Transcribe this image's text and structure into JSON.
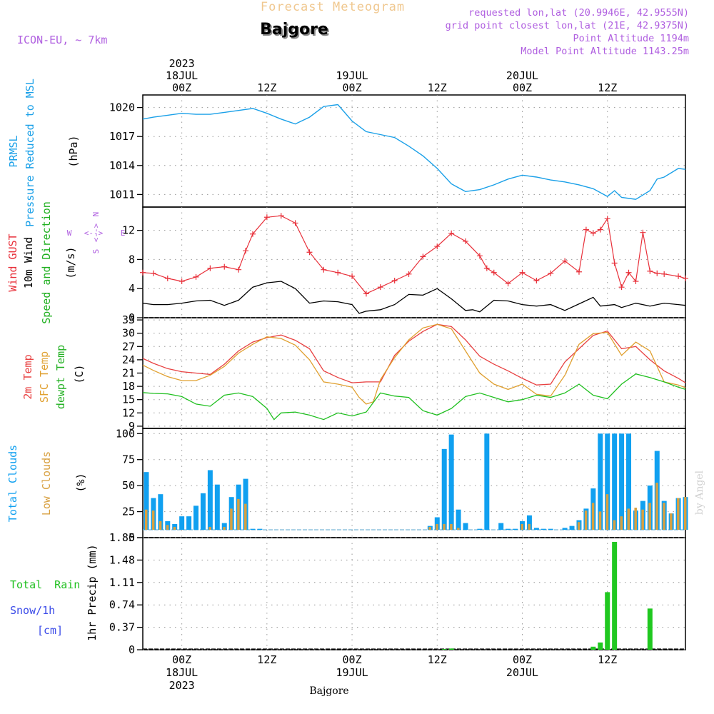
{
  "header": {
    "product": "Forecast Meteogram",
    "location": "Bajgore",
    "model": "ICON-EU, ~ 7km",
    "info_lines": [
      "requested lon,lat (20.9946E, 42.9555N)",
      "grid point closest lon,lat (21E, 42.9375N)",
      "Point Altitude 1194m",
      "Model Point Altitude 1143.25m"
    ],
    "watermark": "by Angel",
    "footer_location": "Bajgore"
  },
  "colors": {
    "pressure": "#1aa0e8",
    "gust": "#e8303a",
    "wind": "#000000",
    "temp": "#e84040",
    "sfc_temp": "#e0a030",
    "dewpoint": "#20c020",
    "total_clouds": "#10a0f0",
    "low_clouds": "#d8a040",
    "rain": "#20c820",
    "snow": "#3a4ae8",
    "label_green": "#20b020",
    "compass": "#b060e0",
    "model": "#b060e0"
  },
  "time_axis": {
    "top_labels": [
      {
        "t": 0,
        "lines": [
          "2023",
          "18JUL",
          "00Z"
        ]
      },
      {
        "t": 12,
        "lines": [
          "12Z"
        ]
      },
      {
        "t": 24,
        "lines": [
          "19JUL",
          "00Z"
        ]
      },
      {
        "t": 36,
        "lines": [
          "12Z"
        ]
      },
      {
        "t": 48,
        "lines": [
          "20JUL",
          "00Z"
        ]
      },
      {
        "t": 60,
        "lines": [
          "12Z"
        ]
      }
    ],
    "bottom_labels": [
      {
        "t": 0,
        "lines": [
          "00Z",
          "18JUL",
          "2023"
        ]
      },
      {
        "t": 12,
        "lines": [
          "12Z"
        ]
      },
      {
        "t": 24,
        "lines": [
          "00Z",
          "19JUL"
        ]
      },
      {
        "t": 36,
        "lines": [
          "12Z"
        ]
      },
      {
        "t": 48,
        "lines": [
          "00Z",
          "20JUL"
        ]
      },
      {
        "t": 60,
        "lines": [
          "12Z"
        ]
      }
    ],
    "t_start": -5.5,
    "t_end": 71
  },
  "chart_data": [
    {
      "type": "line",
      "id": "pressure",
      "title": "PRMSL Pressure Reduced to MSL",
      "ylabel": "(hPa)",
      "labels": [
        "PRMSL",
        "Pressure Reduced to MSL"
      ],
      "ylim": [
        1009.7,
        1021.3
      ],
      "yticks": [
        1011,
        1014,
        1017,
        1020
      ],
      "series": [
        {
          "name": "Pressure Reduced to MSL",
          "x": [
            -5.5,
            -4,
            -2,
            0,
            2,
            4,
            6,
            8,
            10,
            12,
            14,
            16,
            18,
            20,
            22,
            24,
            26,
            28,
            30,
            32,
            34,
            36,
            38,
            40,
            42,
            44,
            46,
            48,
            50,
            52,
            54,
            56,
            58,
            60,
            61,
            62,
            64,
            66,
            67,
            68,
            70,
            71
          ],
          "values": [
            1018.8,
            1019.0,
            1019.2,
            1019.4,
            1019.3,
            1019.3,
            1019.5,
            1019.7,
            1019.9,
            1019.4,
            1018.8,
            1018.3,
            1019.0,
            1020.1,
            1020.3,
            1018.6,
            1017.5,
            1017.2,
            1016.9,
            1016.0,
            1015.0,
            1013.7,
            1012.1,
            1011.3,
            1011.5,
            1012.0,
            1012.6,
            1013.0,
            1012.8,
            1012.5,
            1012.3,
            1012.0,
            1011.6,
            1010.8,
            1011.4,
            1010.7,
            1010.5,
            1011.4,
            1012.6,
            1012.8,
            1013.7,
            1013.6
          ]
        }
      ]
    },
    {
      "type": "line",
      "id": "wind",
      "title": "Wind GUST, 10m Wind Speed and Direction",
      "ylabel": "(m/s)",
      "ylim": [
        0,
        15.2
      ],
      "yticks": [
        0,
        4,
        8,
        12
      ],
      "series": [
        {
          "name": "Wind GUST",
          "x": [
            -5.5,
            -4,
            -2,
            0,
            2,
            4,
            6,
            8,
            9,
            10,
            12,
            14,
            16,
            18,
            20,
            22,
            24,
            26,
            28,
            30,
            32,
            34,
            36,
            38,
            40,
            42,
            43,
            44,
            46,
            48,
            50,
            52,
            54,
            56,
            57,
            58,
            59,
            60,
            61,
            62,
            63,
            64,
            65,
            66,
            67,
            68,
            70,
            71
          ],
          "values": [
            6.2,
            6.1,
            5.4,
            5.0,
            5.6,
            6.8,
            7.0,
            6.6,
            9.2,
            11.5,
            13.8,
            14.0,
            13.0,
            9.0,
            6.6,
            6.2,
            5.7,
            3.3,
            4.2,
            5.1,
            6.0,
            8.4,
            9.8,
            11.6,
            10.5,
            8.5,
            6.8,
            6.2,
            4.7,
            6.2,
            5.1,
            6.1,
            7.8,
            6.3,
            12.1,
            11.6,
            12.1,
            13.6,
            7.5,
            4.2,
            6.2,
            5.0,
            11.7,
            6.4,
            6.1,
            6.0,
            5.7,
            5.4
          ]
        },
        {
          "name": "10m Wind Speed",
          "x": [
            -5.5,
            -4,
            -2,
            0,
            2,
            4,
            6,
            8,
            10,
            12,
            14,
            16,
            18,
            20,
            22,
            24,
            25,
            26,
            28,
            30,
            32,
            34,
            36,
            38,
            40,
            41,
            42,
            44,
            46,
            48,
            50,
            52,
            54,
            56,
            58,
            59,
            60,
            61,
            62,
            64,
            66,
            68,
            70,
            71
          ],
          "values": [
            2.0,
            1.8,
            1.8,
            2.0,
            2.3,
            2.4,
            1.7,
            2.4,
            4.2,
            4.8,
            5.0,
            4.0,
            2.0,
            2.3,
            2.2,
            1.8,
            0.6,
            0.9,
            1.1,
            1.8,
            3.2,
            3.1,
            4.0,
            2.6,
            1.0,
            1.1,
            0.8,
            2.4,
            2.3,
            1.8,
            1.6,
            1.8,
            1.0,
            1.9,
            2.8,
            1.6,
            1.7,
            1.8,
            1.4,
            2.0,
            1.6,
            2.0,
            1.8,
            1.7
          ]
        }
      ],
      "compass": {
        "n": "N",
        "s": "S",
        "e": "E",
        "w": "W"
      }
    },
    {
      "type": "line",
      "id": "temperature",
      "title": "2m Temp, SFC Temp, dewpt Temp",
      "ylabel": "(C)",
      "ylim": [
        8.5,
        33.5
      ],
      "yticks": [
        9,
        12,
        15,
        18,
        21,
        24,
        27,
        30,
        33
      ],
      "series": [
        {
          "name": "2m Temp",
          "x": [
            -5.5,
            -4,
            -2,
            0,
            2,
            4,
            6,
            8,
            10,
            12,
            14,
            16,
            18,
            20,
            22,
            24,
            26,
            28,
            30,
            32,
            34,
            36,
            38,
            40,
            42,
            44,
            46,
            48,
            50,
            52,
            54,
            56,
            58,
            60,
            62,
            64,
            66,
            68,
            70,
            71
          ],
          "values": [
            24.3,
            23.2,
            22.0,
            21.3,
            21.0,
            20.7,
            23.0,
            26.0,
            28.0,
            29.0,
            29.6,
            28.4,
            26.5,
            21.5,
            20.0,
            18.8,
            19.0,
            19.0,
            25.0,
            28.2,
            30.4,
            32.0,
            31.5,
            28.5,
            24.8,
            23.0,
            21.5,
            19.8,
            18.3,
            18.5,
            23.5,
            26.5,
            29.5,
            30.5,
            26.5,
            27.0,
            24.0,
            21.5,
            19.8,
            18.8
          ]
        },
        {
          "name": "SFC Temp",
          "x": [
            -5.5,
            -4,
            -2,
            0,
            2,
            4,
            6,
            8,
            10,
            12,
            14,
            16,
            18,
            20,
            22,
            24,
            25,
            26,
            27,
            28,
            30,
            32,
            34,
            36,
            38,
            40,
            42,
            44,
            46,
            48,
            50,
            52,
            54,
            56,
            58,
            60,
            62,
            64,
            66,
            68,
            70,
            71
          ],
          "values": [
            22.8,
            21.6,
            20.2,
            19.3,
            19.3,
            20.5,
            22.5,
            25.5,
            27.5,
            29.2,
            28.8,
            27.3,
            24.0,
            19.0,
            18.5,
            17.8,
            15.5,
            14.0,
            14.5,
            19.5,
            24.5,
            28.5,
            31.2,
            32.0,
            31.0,
            26.0,
            21.0,
            18.5,
            17.3,
            18.5,
            16.2,
            15.8,
            20.5,
            27.5,
            29.9,
            30.2,
            25.0,
            28.0,
            26.0,
            19.0,
            18.3,
            17.7
          ]
        },
        {
          "name": "dewpt Temp",
          "x": [
            -5.5,
            -4,
            -2,
            0,
            2,
            4,
            6,
            8,
            10,
            12,
            13,
            14,
            16,
            18,
            20,
            22,
            24,
            26,
            28,
            30,
            32,
            34,
            36,
            38,
            40,
            42,
            44,
            46,
            48,
            50,
            52,
            54,
            56,
            58,
            60,
            62,
            64,
            66,
            68,
            70,
            71
          ],
          "values": [
            16.6,
            16.4,
            16.3,
            15.7,
            14.0,
            13.5,
            16.0,
            16.5,
            15.7,
            13.0,
            10.5,
            12.0,
            12.2,
            11.5,
            10.5,
            12.0,
            11.3,
            12.2,
            16.5,
            15.8,
            15.5,
            12.5,
            11.5,
            13.0,
            15.7,
            16.5,
            15.5,
            14.5,
            15.0,
            16.0,
            15.5,
            16.5,
            18.5,
            16.0,
            15.2,
            18.5,
            20.8,
            20.0,
            19.0,
            17.8,
            17.3
          ]
        }
      ]
    },
    {
      "type": "bar",
      "id": "clouds",
      "title": "Total Clouds, Low Clouds",
      "ylabel": "(%)",
      "ylim": [
        0,
        105
      ],
      "yticks": [
        0,
        25,
        50,
        75,
        100
      ],
      "series": [
        {
          "name": "Total Clouds",
          "x": [
            -5,
            -4,
            -3,
            -2,
            -1,
            0,
            1,
            2,
            3,
            4,
            5,
            6,
            7,
            8,
            9,
            10,
            11,
            35,
            36,
            37,
            38,
            39,
            40,
            42,
            43,
            45,
            46,
            47,
            48,
            49,
            50,
            51,
            52,
            54,
            55,
            56,
            57,
            58,
            59,
            60,
            61,
            62,
            63,
            64,
            65,
            66,
            67,
            68,
            69,
            70,
            71
          ],
          "values": [
            60,
            33,
            37,
            9,
            6,
            14,
            14,
            25,
            38,
            62,
            47,
            7,
            34,
            47,
            53,
            1,
            1,
            4,
            13,
            84,
            99,
            21,
            7,
            1,
            100,
            7,
            1,
            1,
            9,
            15,
            2,
            1,
            1,
            2,
            4,
            10,
            22,
            43,
            100,
            100,
            100,
            100,
            100,
            20,
            30,
            46,
            82,
            30,
            17,
            33,
            34
          ]
        },
        {
          "name": "Low Clouds",
          "x": [
            -5,
            -4,
            -3,
            -2,
            -1,
            0,
            1,
            2,
            3,
            4,
            5,
            6,
            7,
            8,
            9,
            10,
            11,
            35,
            36,
            37,
            38,
            39,
            40,
            42,
            43,
            45,
            46,
            47,
            48,
            49,
            50,
            51,
            52,
            54,
            55,
            56,
            57,
            58,
            59,
            60,
            61,
            62,
            63,
            64,
            65,
            66,
            67,
            68,
            69,
            70,
            71
          ],
          "values": [
            21,
            20,
            9,
            5,
            3,
            0,
            0,
            0,
            0,
            3,
            0,
            3,
            22,
            32,
            27,
            0,
            0,
            3,
            6,
            6,
            6,
            2,
            0,
            0,
            0,
            0,
            0,
            0,
            6,
            6,
            0,
            0,
            0,
            0,
            0,
            8,
            20,
            28,
            19,
            37,
            10,
            14,
            22,
            23,
            21,
            28,
            49,
            28,
            17,
            33,
            34
          ]
        }
      ]
    },
    {
      "type": "bar",
      "id": "precip",
      "title": "1hr Precip (mm)",
      "ylabel": "1hr Precip (mm)",
      "labels": [
        "Total Rain",
        "Snow/1h",
        "[cm]"
      ],
      "ylim": [
        0,
        1.85
      ],
      "yticks": [
        0,
        0.37,
        0.74,
        1.11,
        1.48,
        1.85
      ],
      "ytick_labels": [
        "0",
        "0.37",
        "0.74",
        "1.11",
        "1.48",
        "1.85"
      ],
      "series": [
        {
          "name": "Total Rain",
          "x": [
            37,
            38,
            58,
            59,
            60,
            61,
            66
          ],
          "values": [
            0.01,
            0.02,
            0.05,
            0.12,
            0.95,
            1.78,
            0.68
          ]
        },
        {
          "name": "Snow/1h",
          "x": [],
          "values": []
        }
      ]
    }
  ]
}
